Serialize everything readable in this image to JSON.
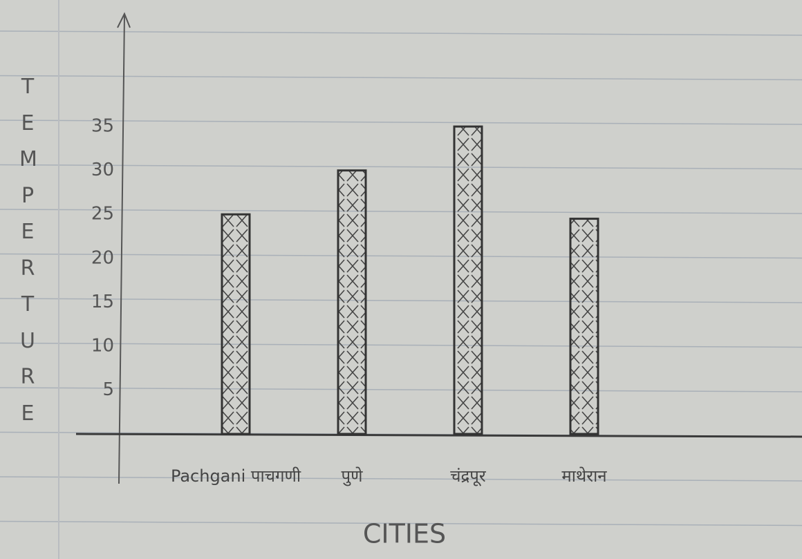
{
  "chart_data": {
    "type": "bar",
    "x_label": "CITIES",
    "y_label": "TEMPERTURE",
    "categories": [
      "Pachgani पाचगणी",
      "पुणे",
      "चंद्रपूर",
      "माथेरान"
    ],
    "values": [
      25,
      30,
      35,
      24.5
    ],
    "color": "#333333",
    "ylim": [
      0,
      45
    ],
    "yticks": [
      5,
      10,
      15,
      20,
      25,
      30,
      35
    ]
  }
}
